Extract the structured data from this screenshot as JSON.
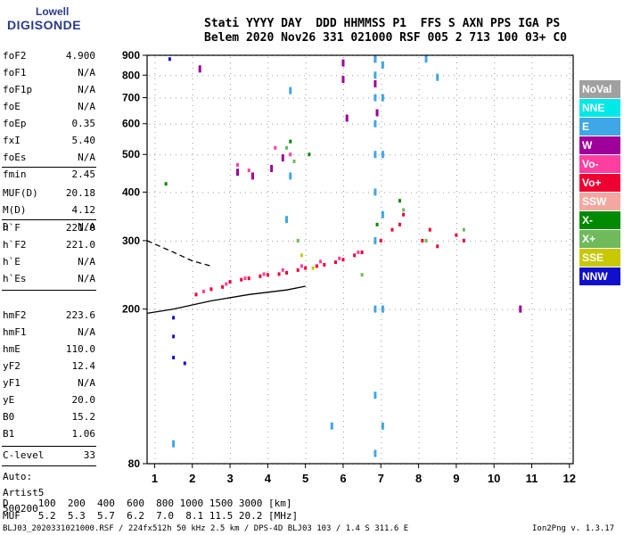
{
  "logo": {
    "line1": "Lowell",
    "line2": "DIGISONDE"
  },
  "header": {
    "line1": "Stati YYYY DAY  DDD HHMMSS P1  FFS S AXN PPS IGA PS",
    "line2": "Belem 2020 Nov26 331 021000 RSF 005 2 713 100 03+ C0"
  },
  "params": [
    {
      "k": "foF2",
      "v": "4.900"
    },
    {
      "k": "foF1",
      "v": "N/A"
    },
    {
      "k": "foF1p",
      "v": "N/A"
    },
    {
      "k": "foE",
      "v": "N/A"
    },
    {
      "k": "foEp",
      "v": "0.35"
    },
    {
      "k": "fxI",
      "v": "5.40"
    },
    {
      "k": "foEs",
      "v": "N/A"
    },
    {
      "k": "fmin",
      "v": "2.45"
    },
    {
      "k": "MUF(D)",
      "v": "20.18"
    },
    {
      "k": "M(D)",
      "v": "4.12"
    },
    {
      "k": "D",
      "v": "N/A"
    },
    {
      "k": "h`F",
      "v": "221.0"
    },
    {
      "k": "h`F2",
      "v": "221.0"
    },
    {
      "k": "h`E",
      "v": "N/A"
    },
    {
      "k": "h`Es",
      "v": "N/A"
    },
    {
      "k": "hmF2",
      "v": "223.6"
    },
    {
      "k": "hmF1",
      "v": "N/A"
    },
    {
      "k": "hmE",
      "v": "110.0"
    },
    {
      "k": "yF2",
      "v": "12.4"
    },
    {
      "k": "yF1",
      "v": "N/A"
    },
    {
      "k": "yE",
      "v": "20.0"
    },
    {
      "k": "B0",
      "v": "15.2"
    },
    {
      "k": "B1",
      "v": "1.06"
    },
    {
      "k": "C-level",
      "v": "33"
    }
  ],
  "auto": {
    "l1": "Auto:",
    "l2": "Artist5",
    "l3": "500200"
  },
  "legend": [
    {
      "label": "NoVal",
      "color": "#a0a0a0"
    },
    {
      "label": "NNE",
      "color": "#00e8e8"
    },
    {
      "label": "E",
      "color": "#3fa7e6"
    },
    {
      "label": "W",
      "color": "#a0009a"
    },
    {
      "label": "Vo-",
      "color": "#ff3fa0"
    },
    {
      "label": "Vo+",
      "color": "#ee0033"
    },
    {
      "label": "SSW",
      "color": "#f2a8a0"
    },
    {
      "label": "X-",
      "color": "#008a00"
    },
    {
      "label": "X+",
      "color": "#6fba5a"
    },
    {
      "label": "SSE",
      "color": "#c8c800"
    },
    {
      "label": "NNW",
      "color": "#1010cc"
    }
  ],
  "footer": {
    "line1": "D     100  200  400  600  800 1000 1500 3000 [km]",
    "line2": "MUF   5.2  5.3  5.7  6.2  7.0  8.1 11.5 20.2 [MHz]",
    "line3": "BLJ03_2020331021000.RSF / 224fx512h 50 kHz 2.5 km / DPS-4D BLJ03 103 / 1.4 S 311.6 E",
    "version": "Ion2Png v. 1.3.17"
  },
  "chart_data": {
    "type": "scatter",
    "title": "",
    "xlabel": "",
    "ylabel": "",
    "xlim": [
      0.8,
      12.1
    ],
    "ylim": [
      80,
      900
    ],
    "x_ticks": [
      1,
      2,
      3,
      4,
      5,
      6,
      7,
      8,
      9,
      10,
      11,
      12
    ],
    "y_ticks": [
      80,
      200,
      300,
      400,
      500,
      600,
      700,
      800,
      900
    ],
    "y_scale": "log",
    "grid": true,
    "series": [
      {
        "name": "Vo+",
        "color": "#ee0033",
        "points": [
          [
            2.1,
            218
          ],
          [
            2.5,
            225
          ],
          [
            3.0,
            235
          ],
          [
            3.5,
            240
          ],
          [
            4.0,
            245
          ],
          [
            4.5,
            248
          ],
          [
            5.0,
            255
          ],
          [
            5.5,
            260
          ],
          [
            6.0,
            268
          ],
          [
            6.5,
            280
          ],
          [
            7.0,
            300
          ],
          [
            7.5,
            330
          ],
          [
            8.3,
            320
          ],
          [
            9.0,
            310
          ],
          [
            2.8,
            228
          ],
          [
            3.3,
            238
          ],
          [
            3.8,
            243
          ],
          [
            4.3,
            246
          ],
          [
            4.8,
            252
          ],
          [
            5.3,
            258
          ],
          [
            5.8,
            264
          ],
          [
            6.3,
            275
          ],
          [
            7.3,
            320
          ],
          [
            7.6,
            350
          ],
          [
            8.1,
            300
          ],
          [
            8.5,
            290
          ],
          [
            9.2,
            300
          ]
        ]
      },
      {
        "name": "Vo-",
        "color": "#ff3fa0",
        "points": [
          [
            2.3,
            222
          ],
          [
            2.9,
            232
          ],
          [
            3.4,
            240
          ],
          [
            3.9,
            246
          ],
          [
            4.4,
            252
          ],
          [
            4.9,
            258
          ],
          [
            5.4,
            265
          ],
          [
            5.9,
            270
          ],
          [
            6.4,
            280
          ],
          [
            3.2,
            470
          ],
          [
            3.5,
            455
          ],
          [
            4.2,
            520
          ],
          [
            4.6,
            500
          ]
        ]
      },
      {
        "name": "W",
        "color": "#a0009a",
        "points": [
          [
            6.0,
            860
          ],
          [
            6.0,
            780
          ],
          [
            6.1,
            620
          ],
          [
            6.85,
            880
          ],
          [
            6.85,
            760
          ],
          [
            6.9,
            640
          ],
          [
            10.7,
            200
          ],
          [
            2.2,
            830
          ],
          [
            3.2,
            450
          ],
          [
            3.6,
            440
          ],
          [
            4.4,
            490
          ],
          [
            4.1,
            460
          ]
        ]
      },
      {
        "name": "E",
        "color": "#3fa7e6",
        "points": [
          [
            6.85,
            880
          ],
          [
            6.85,
            800
          ],
          [
            6.85,
            700
          ],
          [
            6.85,
            600
          ],
          [
            6.85,
            500
          ],
          [
            6.85,
            400
          ],
          [
            6.85,
            300
          ],
          [
            6.85,
            200
          ],
          [
            6.85,
            120
          ],
          [
            6.85,
            85
          ],
          [
            7.05,
            850
          ],
          [
            7.05,
            700
          ],
          [
            7.05,
            500
          ],
          [
            7.05,
            350
          ],
          [
            7.05,
            200
          ],
          [
            7.05,
            100
          ],
          [
            4.6,
            730
          ],
          [
            4.5,
            340
          ],
          [
            4.6,
            440
          ],
          [
            8.2,
            880
          ],
          [
            8.5,
            790
          ],
          [
            1.5,
            90
          ],
          [
            5.7,
            100
          ]
        ]
      },
      {
        "name": "X+",
        "color": "#6fba5a",
        "points": [
          [
            4.5,
            520
          ],
          [
            4.7,
            480
          ],
          [
            6.5,
            245
          ],
          [
            7.6,
            360
          ],
          [
            8.2,
            300
          ],
          [
            9.2,
            320
          ],
          [
            4.8,
            300
          ]
        ]
      },
      {
        "name": "X-",
        "color": "#008a00",
        "points": [
          [
            4.6,
            540
          ],
          [
            5.1,
            500
          ],
          [
            6.9,
            330
          ],
          [
            7.5,
            380
          ],
          [
            1.3,
            420
          ]
        ]
      },
      {
        "name": "NNW",
        "color": "#1010cc",
        "points": [
          [
            1.5,
            150
          ],
          [
            1.5,
            170
          ],
          [
            1.5,
            190
          ],
          [
            1.4,
            880
          ],
          [
            1.8,
            145
          ]
        ]
      },
      {
        "name": "SSE",
        "color": "#c8c800",
        "points": [
          [
            4.9,
            275
          ],
          [
            5.2,
            255
          ]
        ]
      }
    ],
    "lines": [
      {
        "name": "trace-solid",
        "style": "solid",
        "points": [
          [
            0.8,
            195
          ],
          [
            1.5,
            200
          ],
          [
            2.5,
            210
          ],
          [
            3.5,
            218
          ],
          [
            4.5,
            224
          ],
          [
            5.0,
            229
          ]
        ]
      },
      {
        "name": "trace-dashed",
        "style": "dashed",
        "points": [
          [
            0.8,
            300
          ],
          [
            1.5,
            280
          ],
          [
            2.0,
            266
          ],
          [
            2.5,
            258
          ]
        ]
      }
    ]
  }
}
